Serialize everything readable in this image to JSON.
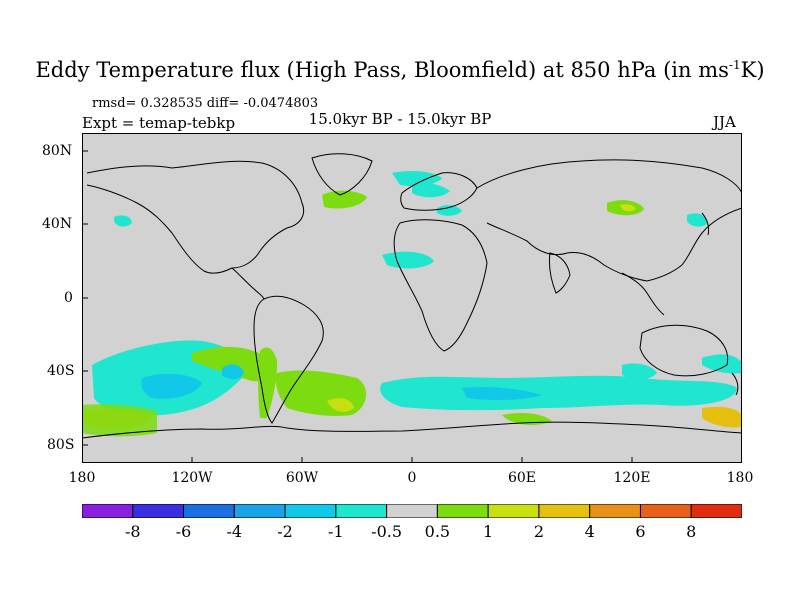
{
  "title": "Eddy Temperature flux (High Pass, Bloomfield) at 850 hPa (in ms",
  "title_sup": "-1",
  "title_end": "K)",
  "stats": "rmsd= 0.328535 diff= -0.0474803",
  "expt": "Expt = temap-tebkp",
  "period": "15.0kyr BP - 15.0kyr BP",
  "season": "JJA",
  "lat_labels": [
    "80N",
    "40N",
    "0",
    "40S",
    "80S"
  ],
  "lon_labels": [
    "180",
    "120W",
    "60W",
    "0",
    "60E",
    "120E",
    "180"
  ],
  "colorbar": {
    "labels": [
      "-8",
      "-6",
      "-4",
      "-2",
      "-1",
      "-0.5",
      "0.5",
      "1",
      "2",
      "4",
      "6",
      "8"
    ],
    "colors": [
      "#8a1fe0",
      "#3a2ee0",
      "#1c6fe0",
      "#1aa3e8",
      "#12c8e8",
      "#20e6d0",
      "#d2d2d2",
      "#7ddc10",
      "#c8e010",
      "#e6c010",
      "#e8901a",
      "#e8601a",
      "#e02c10"
    ]
  },
  "background_color": "#d2d2d2"
}
